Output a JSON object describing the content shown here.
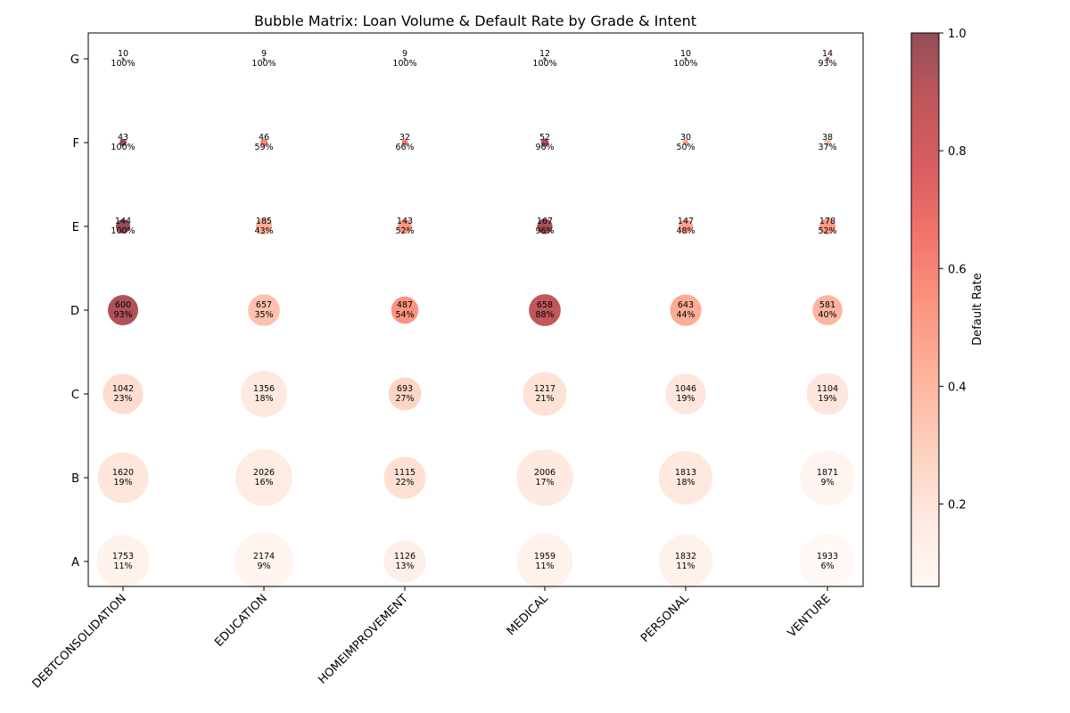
{
  "chart_data": {
    "type": "scatter",
    "title": "Bubble Matrix: Loan Volume & Default Rate by Grade & Intent",
    "xlabel": "",
    "ylabel": "",
    "x_categories": [
      "DEBTCONSOLIDATION",
      "EDUCATION",
      "HOMEIMPROVEMENT",
      "MEDICAL",
      "PERSONAL",
      "VENTURE"
    ],
    "y_categories": [
      "A",
      "B",
      "C",
      "D",
      "E",
      "F",
      "G"
    ],
    "size_encodes": "loan count",
    "color_encodes": "default rate",
    "colorbar": {
      "label": "Default Rate",
      "range": [
        0.06,
        1.0
      ],
      "ticks": [
        "0.2",
        "0.4",
        "0.6",
        "0.8",
        "1.0"
      ],
      "tick_values": [
        0.2,
        0.4,
        0.6,
        0.8,
        1.0
      ],
      "colormap": "Reds",
      "colors": [
        "#fff5f0",
        "#fee0d2",
        "#fcbba1",
        "#fc9272",
        "#fb6a4a",
        "#ef3b2c",
        "#cb181d",
        "#a50f15",
        "#67000d"
      ]
    },
    "points": [
      {
        "x": "DEBTCONSOLIDATION",
        "y": "A",
        "count": "1753",
        "rate": "11%"
      },
      {
        "x": "EDUCATION",
        "y": "A",
        "count": "2174",
        "rate": "9%"
      },
      {
        "x": "HOMEIMPROVEMENT",
        "y": "A",
        "count": "1126",
        "rate": "13%"
      },
      {
        "x": "MEDICAL",
        "y": "A",
        "count": "1959",
        "rate": "11%"
      },
      {
        "x": "PERSONAL",
        "y": "A",
        "count": "1832",
        "rate": "11%"
      },
      {
        "x": "VENTURE",
        "y": "A",
        "count": "1933",
        "rate": "6%"
      },
      {
        "x": "DEBTCONSOLIDATION",
        "y": "B",
        "count": "1620",
        "rate": "19%"
      },
      {
        "x": "EDUCATION",
        "y": "B",
        "count": "2026",
        "rate": "16%"
      },
      {
        "x": "HOMEIMPROVEMENT",
        "y": "B",
        "count": "1115",
        "rate": "22%"
      },
      {
        "x": "MEDICAL",
        "y": "B",
        "count": "2006",
        "rate": "17%"
      },
      {
        "x": "PERSONAL",
        "y": "B",
        "count": "1813",
        "rate": "18%"
      },
      {
        "x": "VENTURE",
        "y": "B",
        "count": "1871",
        "rate": "9%"
      },
      {
        "x": "DEBTCONSOLIDATION",
        "y": "C",
        "count": "1042",
        "rate": "23%"
      },
      {
        "x": "EDUCATION",
        "y": "C",
        "count": "1356",
        "rate": "18%"
      },
      {
        "x": "HOMEIMPROVEMENT",
        "y": "C",
        "count": "693",
        "rate": "27%"
      },
      {
        "x": "MEDICAL",
        "y": "C",
        "count": "1217",
        "rate": "21%"
      },
      {
        "x": "PERSONAL",
        "y": "C",
        "count": "1046",
        "rate": "19%"
      },
      {
        "x": "VENTURE",
        "y": "C",
        "count": "1104",
        "rate": "19%"
      },
      {
        "x": "DEBTCONSOLIDATION",
        "y": "D",
        "count": "600",
        "rate": "93%"
      },
      {
        "x": "EDUCATION",
        "y": "D",
        "count": "657",
        "rate": "35%"
      },
      {
        "x": "HOMEIMPROVEMENT",
        "y": "D",
        "count": "487",
        "rate": "54%"
      },
      {
        "x": "MEDICAL",
        "y": "D",
        "count": "658",
        "rate": "88%"
      },
      {
        "x": "PERSONAL",
        "y": "D",
        "count": "643",
        "rate": "44%"
      },
      {
        "x": "VENTURE",
        "y": "D",
        "count": "581",
        "rate": "40%"
      },
      {
        "x": "DEBTCONSOLIDATION",
        "y": "E",
        "count": "144",
        "rate": "100%"
      },
      {
        "x": "EDUCATION",
        "y": "E",
        "count": "185",
        "rate": "43%"
      },
      {
        "x": "HOMEIMPROVEMENT",
        "y": "E",
        "count": "143",
        "rate": "52%"
      },
      {
        "x": "MEDICAL",
        "y": "E",
        "count": "167",
        "rate": "96%"
      },
      {
        "x": "PERSONAL",
        "y": "E",
        "count": "147",
        "rate": "48%"
      },
      {
        "x": "VENTURE",
        "y": "E",
        "count": "178",
        "rate": "52%"
      },
      {
        "x": "DEBTCONSOLIDATION",
        "y": "F",
        "count": "43",
        "rate": "100%"
      },
      {
        "x": "EDUCATION",
        "y": "F",
        "count": "46",
        "rate": "59%"
      },
      {
        "x": "HOMEIMPROVEMENT",
        "y": "F",
        "count": "32",
        "rate": "66%"
      },
      {
        "x": "MEDICAL",
        "y": "F",
        "count": "52",
        "rate": "96%"
      },
      {
        "x": "PERSONAL",
        "y": "F",
        "count": "30",
        "rate": "50%"
      },
      {
        "x": "VENTURE",
        "y": "F",
        "count": "38",
        "rate": "37%"
      },
      {
        "x": "DEBTCONSOLIDATION",
        "y": "G",
        "count": "10",
        "rate": "100%"
      },
      {
        "x": "EDUCATION",
        "y": "G",
        "count": "9",
        "rate": "100%"
      },
      {
        "x": "HOMEIMPROVEMENT",
        "y": "G",
        "count": "9",
        "rate": "100%"
      },
      {
        "x": "MEDICAL",
        "y": "G",
        "count": "12",
        "rate": "100%"
      },
      {
        "x": "PERSONAL",
        "y": "G",
        "count": "10",
        "rate": "100%"
      },
      {
        "x": "VENTURE",
        "y": "G",
        "count": "14",
        "rate": "93%"
      }
    ]
  }
}
